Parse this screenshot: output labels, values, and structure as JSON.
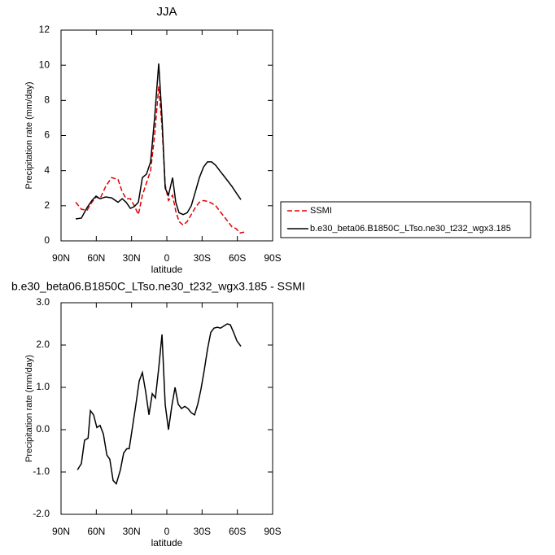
{
  "chart_data": [
    {
      "type": "line",
      "title": "JJA",
      "xlabel": "latitude",
      "ylabel": "Precipitation rate (mm/day)",
      "xlim": [
        90,
        -90
      ],
      "xticks": [
        {
          "value": 90,
          "label": "90N"
        },
        {
          "value": 60,
          "label": "60N"
        },
        {
          "value": 30,
          "label": "30N"
        },
        0,
        {
          "value": -30,
          "label": "30S"
        },
        {
          "value": -60,
          "label": "60S"
        },
        {
          "value": -90,
          "label": "90S"
        }
      ],
      "ylim": [
        0,
        12
      ],
      "yticks": [
        0,
        2,
        4,
        6,
        8,
        10,
        12
      ],
      "legend": "right",
      "series": [
        {
          "name": "SSMI",
          "color": "#e00000",
          "linestyle": "dashed",
          "x": [
            77.5,
            72.7,
            67.8,
            63.7,
            60.2,
            56.8,
            52,
            47,
            41.5,
            38,
            34.6,
            31,
            27.7,
            24.2,
            20.8,
            17.3,
            13.8,
            10.4,
            6.9,
            4.1,
            1.4,
            -1.4,
            -4.9,
            -7.6,
            -10.4,
            -13.9,
            -17.3,
            -20.8,
            -24.3,
            -27.7,
            -31.2,
            -34.6,
            -38.1,
            -41.6,
            -45,
            -48.5,
            -52,
            -55.4,
            -58.9,
            -62.3,
            -65.8
          ],
          "values": [
            2.2,
            1.8,
            1.75,
            2.2,
            2.5,
            2.4,
            3.1,
            3.6,
            3.5,
            2.8,
            2.4,
            2.4,
            2.0,
            1.5,
            2.6,
            3.3,
            4.0,
            6.0,
            8.8,
            6.5,
            3.2,
            2.3,
            2.6,
            1.7,
            1.1,
            0.9,
            1.1,
            1.5,
            1.9,
            2.2,
            2.3,
            2.25,
            2.15,
            2.0,
            1.7,
            1.4,
            1.1,
            0.8,
            0.7,
            0.45,
            0.5
          ]
        },
        {
          "name": "b.e30_beta06.B1850C_LTso.ne30_t232_wgx3.185",
          "color": "#000000",
          "linestyle": "solid",
          "x": [
            77.5,
            72.7,
            67.8,
            63.7,
            60.2,
            56.8,
            52,
            47,
            41.5,
            38,
            34.6,
            31,
            27.7,
            24.2,
            20.8,
            17.3,
            13.8,
            10.4,
            6.9,
            4.1,
            1.4,
            -1.4,
            -4.9,
            -7.6,
            -10.4,
            -13.9,
            -17.3,
            -20.8,
            -24.3,
            -27.7,
            -31.2,
            -34.6,
            -38.1,
            -41.6,
            -45,
            -48.5,
            -52,
            -55.4,
            -58.9,
            -63
          ],
          "values": [
            1.25,
            1.3,
            1.9,
            2.3,
            2.55,
            2.4,
            2.5,
            2.45,
            2.2,
            2.4,
            2.2,
            1.85,
            1.95,
            2.2,
            3.6,
            3.8,
            4.5,
            7.0,
            10.1,
            7.0,
            3.0,
            2.6,
            3.6,
            2.2,
            1.6,
            1.5,
            1.6,
            2.0,
            2.8,
            3.6,
            4.2,
            4.5,
            4.5,
            4.3,
            4.0,
            3.7,
            3.4,
            3.1,
            2.75,
            2.35
          ]
        }
      ]
    },
    {
      "type": "line",
      "title": "b.e30_beta06.B1850C_LTso.ne30_t232_wgx3.185 - SSMI",
      "xlabel": "latitude",
      "ylabel": "Precipitation rate (mm/day)",
      "xlim": [
        90,
        -90
      ],
      "xticks": [
        {
          "value": 90,
          "label": "90N"
        },
        {
          "value": 60,
          "label": "60N"
        },
        {
          "value": 30,
          "label": "30N"
        },
        0,
        {
          "value": -30,
          "label": "30S"
        },
        {
          "value": -60,
          "label": "60S"
        },
        {
          "value": -90,
          "label": "90S"
        }
      ],
      "ylim": [
        -2,
        3
      ],
      "yticks": [
        {
          "value": -2,
          "label": "-2.0"
        },
        {
          "value": -1,
          "label": "-1.0"
        },
        {
          "value": 0,
          "label": "0.0"
        },
        {
          "value": 1,
          "label": "1.0"
        },
        {
          "value": 2,
          "label": "2.0"
        },
        {
          "value": 3,
          "label": "3.0"
        }
      ],
      "series": [
        {
          "color": "#000000",
          "linestyle": "solid",
          "x": [
            76,
            72.7,
            70,
            67,
            65,
            62.3,
            59.5,
            56.8,
            54,
            51,
            48.5,
            45.7,
            43,
            39.5,
            36.7,
            34,
            32,
            29,
            26.3,
            23.5,
            20.8,
            18,
            15.2,
            12.4,
            9.7,
            6.9,
            4.1,
            1.4,
            -1.4,
            -4.2,
            -7,
            -9.7,
            -12.5,
            -15.3,
            -18,
            -20.8,
            -23.6,
            -26.3,
            -29,
            -31.8,
            -34.6,
            -37.4,
            -40.2,
            -43,
            -45.7,
            -48.5,
            -51.3,
            -54,
            -56.8,
            -59.6,
            -63
          ],
          "values": [
            -0.95,
            -0.8,
            -0.25,
            -0.2,
            0.45,
            0.35,
            0.05,
            0.1,
            -0.1,
            -0.6,
            -0.7,
            -1.2,
            -1.28,
            -0.95,
            -0.55,
            -0.45,
            -0.45,
            0.1,
            0.6,
            1.15,
            1.35,
            0.9,
            0.35,
            0.85,
            0.75,
            1.45,
            2.25,
            0.6,
            0.0,
            0.55,
            1.0,
            0.6,
            0.5,
            0.55,
            0.5,
            0.4,
            0.35,
            0.6,
            0.95,
            1.4,
            1.9,
            2.3,
            2.4,
            2.42,
            2.4,
            2.45,
            2.5,
            2.48,
            2.3,
            2.1,
            1.97
          ]
        }
      ]
    }
  ]
}
